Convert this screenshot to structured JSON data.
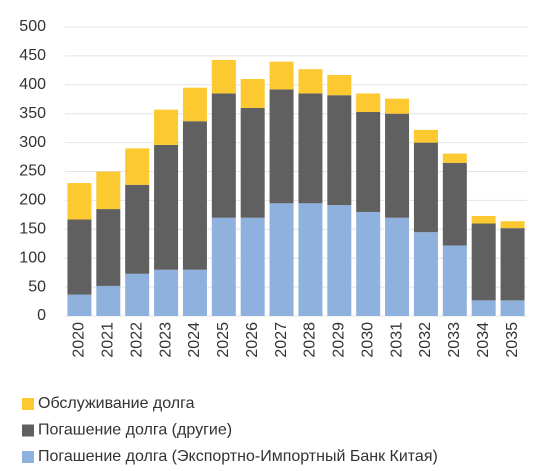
{
  "chart_data": {
    "type": "stacked_bar",
    "categories": [
      "2020",
      "2021",
      "2022",
      "2023",
      "2024",
      "2025",
      "2026",
      "2027",
      "2028",
      "2029",
      "2030",
      "2031",
      "2032",
      "2033",
      "2034",
      "2035"
    ],
    "series": [
      {
        "name": "Погашение долга (Экспортно-Импортный Банк Китая)",
        "color": "#8fb1dd",
        "values": [
          37,
          52,
          73,
          80,
          80,
          170,
          170,
          195,
          195,
          192,
          180,
          170,
          145,
          122,
          27,
          27
        ]
      },
      {
        "name": "Погашение долга (другие)",
        "color": "#606060",
        "values": [
          130,
          133,
          154,
          216,
          257,
          215,
          190,
          197,
          190,
          190,
          173,
          180,
          155,
          143,
          133,
          125
        ]
      },
      {
        "name": "Обслуживание долга",
        "color": "#fcc931",
        "values": [
          63,
          65,
          63,
          61,
          58,
          58,
          50,
          48,
          42,
          35,
          32,
          26,
          22,
          16,
          13,
          12
        ]
      }
    ],
    "ylim": [
      0,
      500
    ],
    "yticks": [
      0,
      50,
      100,
      150,
      200,
      250,
      300,
      350,
      400,
      450,
      500
    ],
    "grid": true
  }
}
